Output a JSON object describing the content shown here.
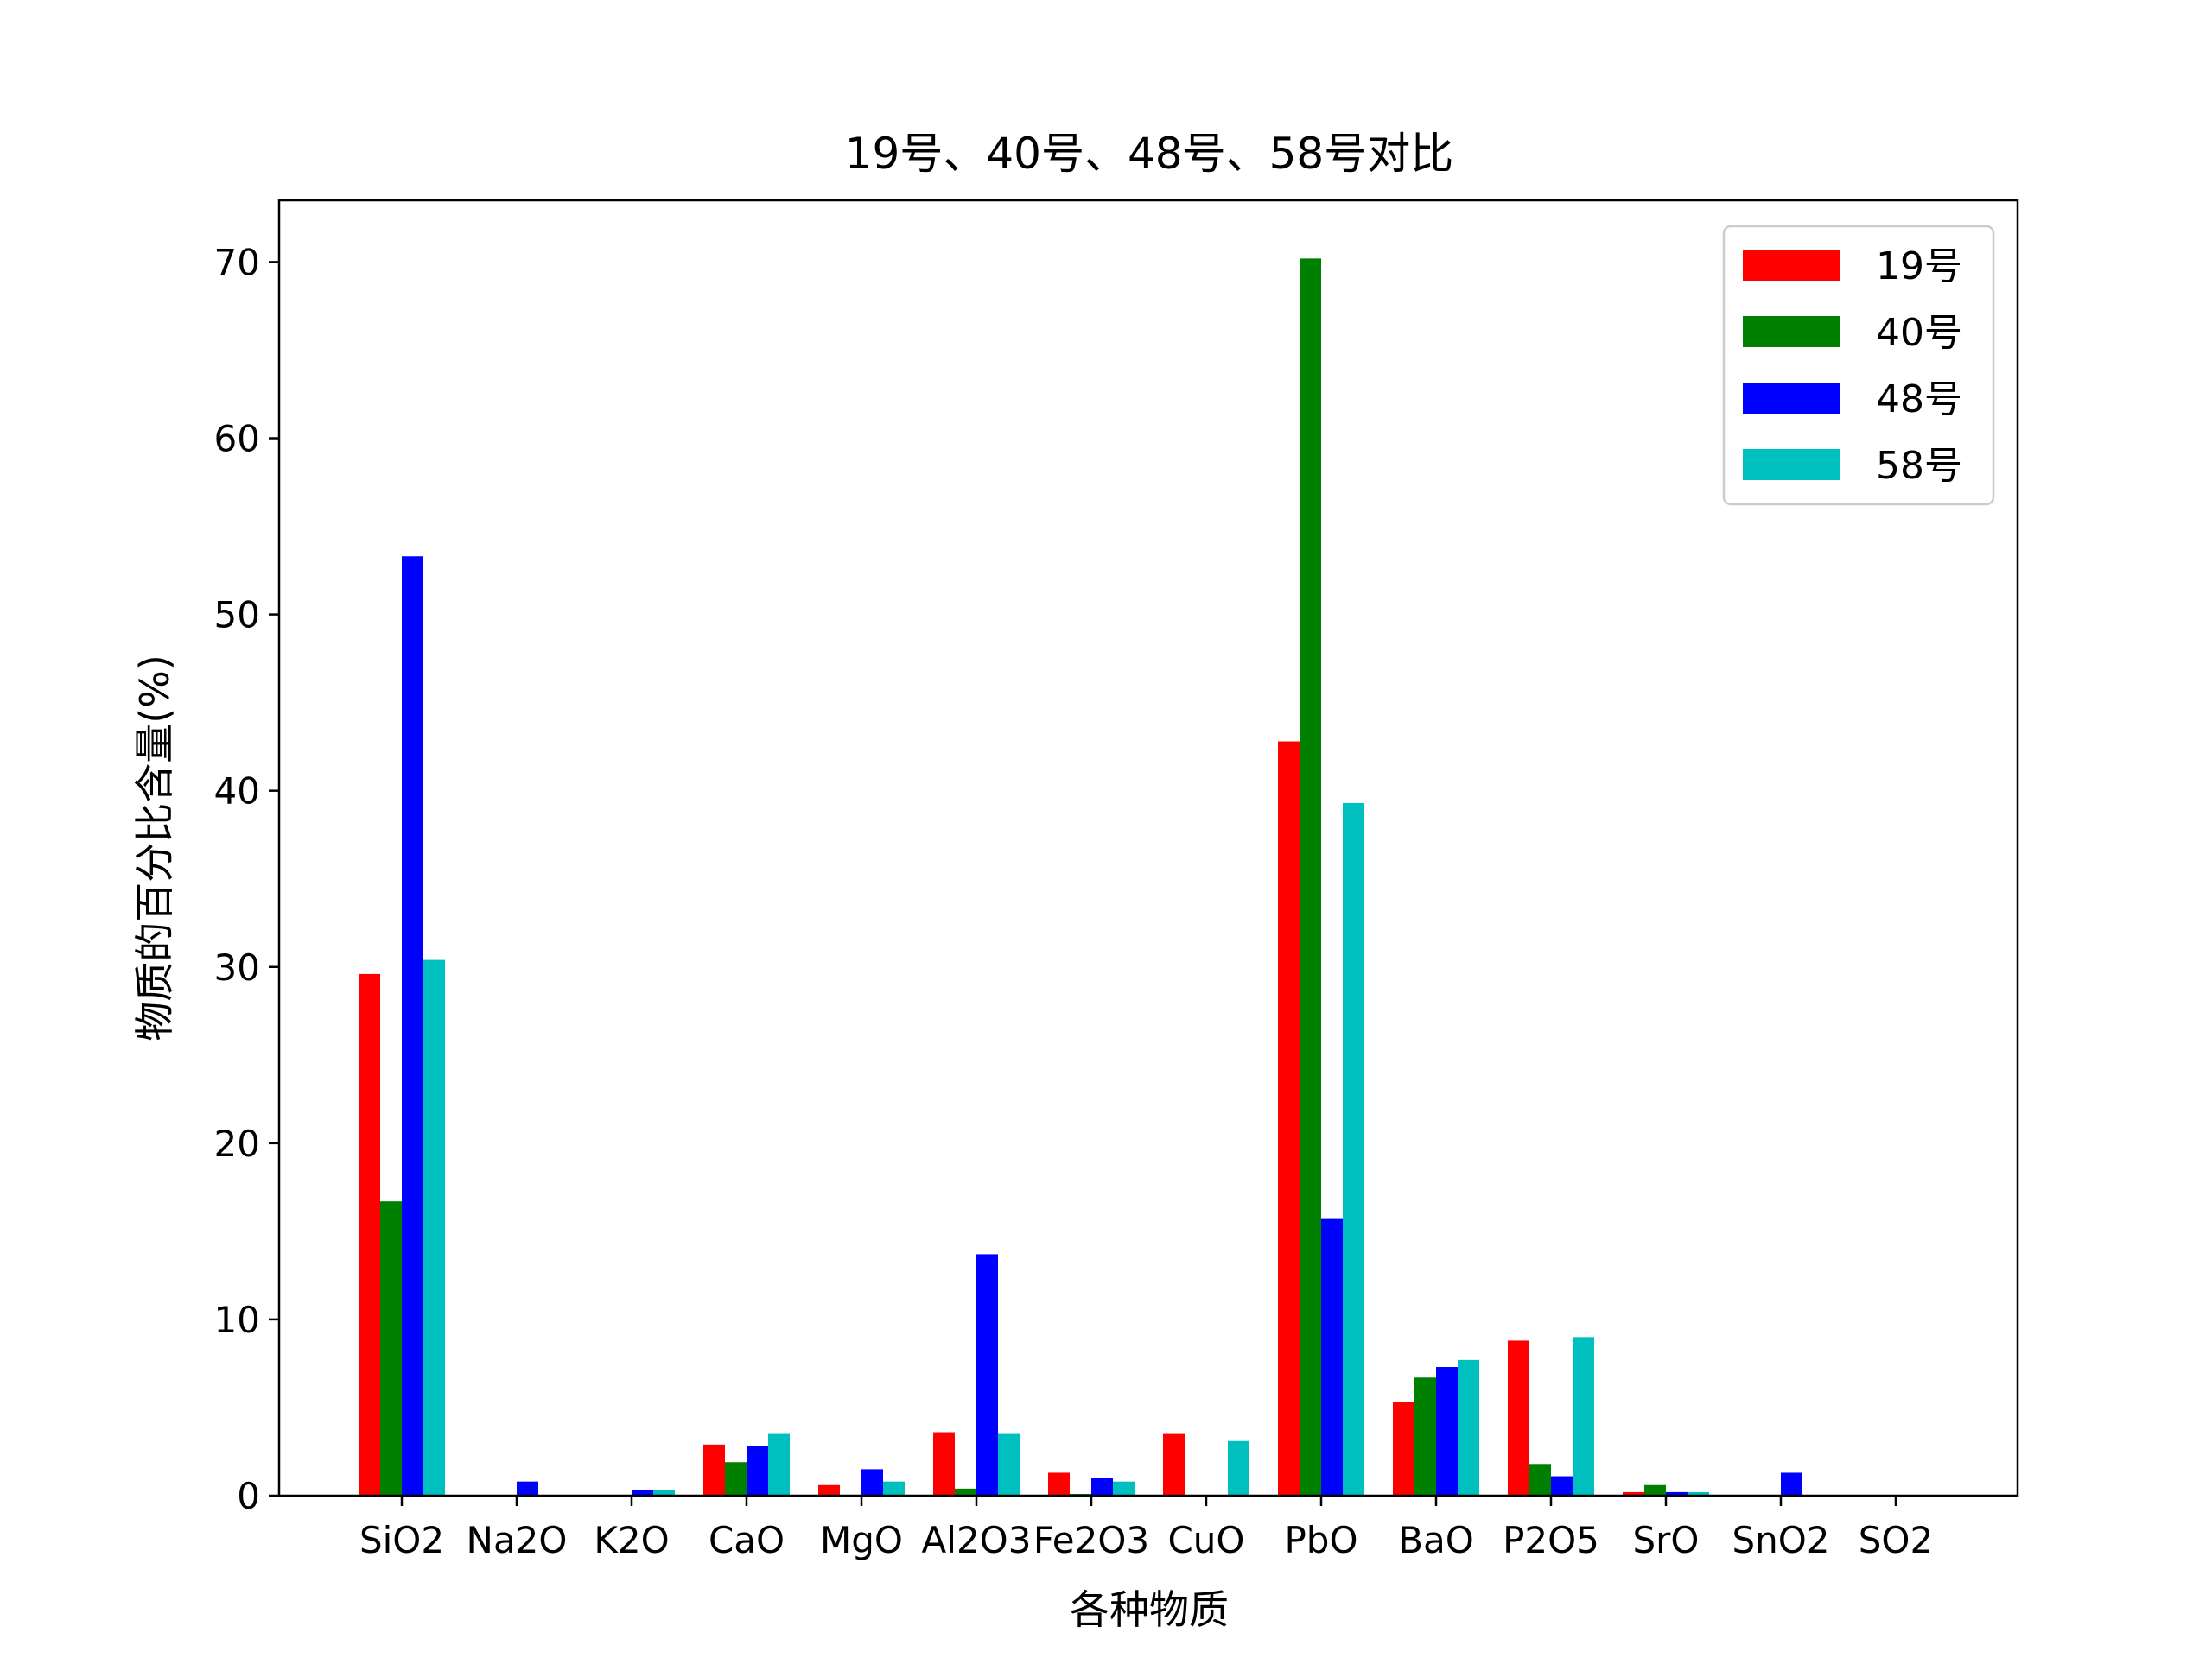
{
  "chart_data": {
    "type": "bar",
    "title": "19号、40号、48号、58号对比",
    "xlabel": "各种物质",
    "ylabel": "物质的百分比含量(%)",
    "ylim": [
      0,
      73.5
    ],
    "yticks": [
      0,
      10,
      20,
      30,
      40,
      50,
      60,
      70
    ],
    "legend_position": "top-right",
    "grid": false,
    "categories": [
      "SiO2",
      "Na2O",
      "K2O",
      "CaO",
      "MgO",
      "Al2O3",
      "Fe2O3",
      "CuO",
      "PbO",
      "BaO",
      "P2O5",
      "SrO",
      "SnO2",
      "SO2"
    ],
    "series": [
      {
        "name": "19号",
        "color": "#ff0000",
        "values": [
          29.6,
          0,
          0,
          2.9,
          0.6,
          3.6,
          1.3,
          3.5,
          42.8,
          5.3,
          8.8,
          0.2,
          0,
          0
        ]
      },
      {
        "name": "40号",
        "color": "#008000",
        "values": [
          16.7,
          0,
          0,
          1.9,
          0,
          0.4,
          0.1,
          0,
          70.2,
          6.7,
          1.8,
          0.6,
          0,
          0
        ]
      },
      {
        "name": "48号",
        "color": "#0000ff",
        "values": [
          53.3,
          0.8,
          0.3,
          2.8,
          1.5,
          13.7,
          1.0,
          0,
          15.7,
          7.3,
          1.1,
          0.2,
          1.3,
          0
        ]
      },
      {
        "name": "58号",
        "color": "#00bfbf",
        "values": [
          30.4,
          0,
          0.3,
          3.5,
          0.8,
          3.5,
          0.8,
          3.1,
          39.3,
          7.7,
          9.0,
          0.2,
          0,
          0
        ]
      }
    ]
  }
}
